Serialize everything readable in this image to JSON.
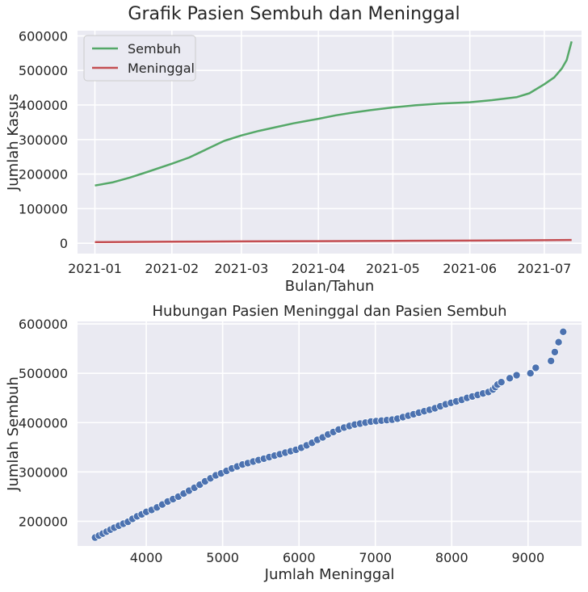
{
  "suptitle": "Grafik Pasien Sembuh dan Meninggal",
  "charts": [
    {
      "type": "line",
      "title": "",
      "xlabel": "Bulan/Tahun",
      "ylabel": "Jumlah Kasus",
      "x_ticks": [
        "2021-01",
        "2021-02",
        "2021-03",
        "2021-04",
        "2021-05",
        "2021-06",
        "2021-07"
      ],
      "y_ticks": [
        "0",
        "100000",
        "200000",
        "300000",
        "400000",
        "500000",
        "600000"
      ],
      "legend": {
        "position": "top-left",
        "items": [
          "Sembuh",
          "Meninggal"
        ]
      }
    },
    {
      "type": "scatter",
      "title": "Hubungan Pasien Meninggal dan Pasien Sembuh",
      "xlabel": "Jumlah Meninggal",
      "ylabel": "Jumlah Sembuh",
      "x_ticks": [
        "4000",
        "5000",
        "6000",
        "7000",
        "8000",
        "9000"
      ],
      "y_ticks": [
        "200000",
        "300000",
        "400000",
        "500000",
        "600000"
      ]
    }
  ],
  "chart_data": [
    {
      "type": "line",
      "title": "",
      "xlabel": "Bulan/Tahun",
      "ylabel": "Jumlah Kasus",
      "x_range": [
        "2020-12-25",
        "2021-07-16"
      ],
      "ylim": [
        -30000,
        615000
      ],
      "grid": true,
      "legend": "top-left",
      "series": [
        {
          "name": "Sembuh",
          "color": "#55a868",
          "points": [
            [
              "2021-01-01",
              167000
            ],
            [
              "2021-01-08",
              176000
            ],
            [
              "2021-01-15",
              190000
            ],
            [
              "2021-01-22",
              206000
            ],
            [
              "2021-02-01",
              230000
            ],
            [
              "2021-02-08",
              248000
            ],
            [
              "2021-02-15",
              272000
            ],
            [
              "2021-02-22",
              296000
            ],
            [
              "2021-03-01",
              312000
            ],
            [
              "2021-03-08",
              325000
            ],
            [
              "2021-03-15",
              336000
            ],
            [
              "2021-03-22",
              347000
            ],
            [
              "2021-04-01",
              360000
            ],
            [
              "2021-04-08",
              370000
            ],
            [
              "2021-04-15",
              378000
            ],
            [
              "2021-04-22",
              385000
            ],
            [
              "2021-05-01",
              393000
            ],
            [
              "2021-05-10",
              399000
            ],
            [
              "2021-05-20",
              404000
            ],
            [
              "2021-06-01",
              408000
            ],
            [
              "2021-06-10",
              414000
            ],
            [
              "2021-06-20",
              423000
            ],
            [
              "2021-06-25",
              434000
            ],
            [
              "2021-07-01",
              460000
            ],
            [
              "2021-07-05",
              480000
            ],
            [
              "2021-07-08",
              505000
            ],
            [
              "2021-07-10",
              530000
            ],
            [
              "2021-07-12",
              584000
            ]
          ]
        },
        {
          "name": "Meninggal",
          "color": "#c44e52",
          "points": [
            [
              "2021-01-01",
              3300
            ],
            [
              "2021-02-01",
              4400
            ],
            [
              "2021-03-01",
              5200
            ],
            [
              "2021-04-01",
              6000
            ],
            [
              "2021-05-01",
              6900
            ],
            [
              "2021-06-01",
              7700
            ],
            [
              "2021-07-01",
              8800
            ],
            [
              "2021-07-12",
              9500
            ]
          ]
        }
      ]
    },
    {
      "type": "scatter",
      "title": "Hubungan Pasien Meninggal dan Pasien Sembuh",
      "xlabel": "Jumlah Meninggal",
      "ylabel": "Jumlah Sembuh",
      "xlim": [
        3100,
        9700
      ],
      "ylim": [
        150000,
        605000
      ],
      "grid": true,
      "color": "#4c72b0",
      "points": [
        [
          3330,
          167000
        ],
        [
          3380,
          171000
        ],
        [
          3430,
          175000
        ],
        [
          3480,
          179000
        ],
        [
          3530,
          183000
        ],
        [
          3580,
          187000
        ],
        [
          3640,
          191000
        ],
        [
          3700,
          195000
        ],
        [
          3760,
          199000
        ],
        [
          3820,
          205000
        ],
        [
          3880,
          210000
        ],
        [
          3940,
          214000
        ],
        [
          4000,
          219000
        ],
        [
          4070,
          223000
        ],
        [
          4140,
          228000
        ],
        [
          4210,
          234000
        ],
        [
          4280,
          240000
        ],
        [
          4350,
          245000
        ],
        [
          4420,
          250000
        ],
        [
          4490,
          256000
        ],
        [
          4560,
          262000
        ],
        [
          4630,
          268000
        ],
        [
          4700,
          274000
        ],
        [
          4770,
          281000
        ],
        [
          4840,
          287000
        ],
        [
          4910,
          293000
        ],
        [
          4980,
          297000
        ],
        [
          5050,
          302000
        ],
        [
          5120,
          307000
        ],
        [
          5190,
          311000
        ],
        [
          5260,
          315000
        ],
        [
          5330,
          318000
        ],
        [
          5400,
          321000
        ],
        [
          5470,
          324000
        ],
        [
          5540,
          327000
        ],
        [
          5610,
          330000
        ],
        [
          5680,
          333000
        ],
        [
          5750,
          336000
        ],
        [
          5820,
          339000
        ],
        [
          5890,
          342000
        ],
        [
          5960,
          345000
        ],
        [
          6030,
          349000
        ],
        [
          6100,
          354000
        ],
        [
          6170,
          359000
        ],
        [
          6240,
          365000
        ],
        [
          6310,
          370000
        ],
        [
          6380,
          376000
        ],
        [
          6450,
          381000
        ],
        [
          6520,
          386000
        ],
        [
          6590,
          390000
        ],
        [
          6660,
          393000
        ],
        [
          6730,
          396000
        ],
        [
          6800,
          398000
        ],
        [
          6870,
          400000
        ],
        [
          6940,
          402000
        ],
        [
          7010,
          403000
        ],
        [
          7080,
          404000
        ],
        [
          7150,
          405000
        ],
        [
          7220,
          406000
        ],
        [
          7290,
          408000
        ],
        [
          7360,
          411000
        ],
        [
          7430,
          414000
        ],
        [
          7500,
          417000
        ],
        [
          7570,
          420000
        ],
        [
          7640,
          423000
        ],
        [
          7710,
          426000
        ],
        [
          7780,
          429000
        ],
        [
          7850,
          433000
        ],
        [
          7920,
          437000
        ],
        [
          7990,
          440000
        ],
        [
          8060,
          443000
        ],
        [
          8130,
          446000
        ],
        [
          8200,
          450000
        ],
        [
          8270,
          453000
        ],
        [
          8340,
          456000
        ],
        [
          8410,
          459000
        ],
        [
          8480,
          462000
        ],
        [
          8540,
          467000
        ],
        [
          8570,
          472000
        ],
        [
          8600,
          477000
        ],
        [
          8650,
          482000
        ],
        [
          8760,
          490000
        ],
        [
          8850,
          496000
        ],
        [
          9030,
          500000
        ],
        [
          9100,
          511000
        ],
        [
          9300,
          525000
        ],
        [
          9350,
          543000
        ],
        [
          9400,
          563000
        ],
        [
          9460,
          584000
        ]
      ]
    }
  ]
}
